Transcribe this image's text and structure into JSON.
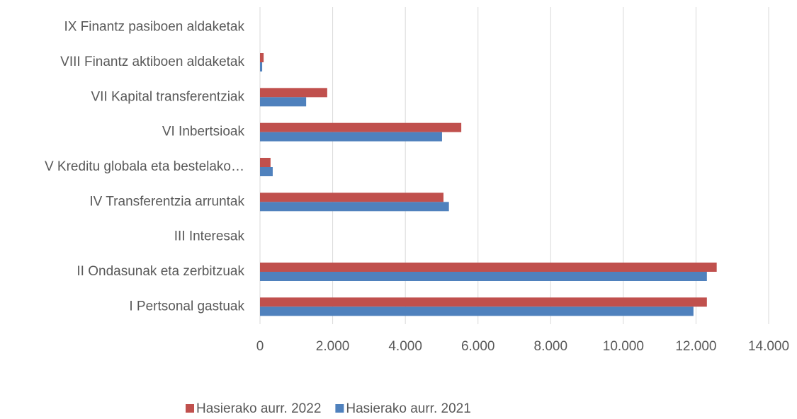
{
  "chart_data": {
    "type": "hbar",
    "categories": [
      "IX Finantz pasiboen aldaketak",
      "VIII Finantz  aktiboen aldaketak",
      "VII Kapital transferentziak",
      "VI Inbertsioak",
      "V Kreditu globala eta bestelako…",
      "IV Transferentzia arruntak",
      "III Interesak",
      "II Ondasunak eta zerbitzuak",
      "I Pertsonal gastuak"
    ],
    "series": [
      {
        "name": "Hasierako aurr. 2022",
        "color": "#c0504d",
        "values": [
          0,
          100,
          1850,
          5540,
          290,
          5050,
          0,
          12570,
          12300
        ]
      },
      {
        "name": "Hasierako aurr. 2021",
        "color": "#4f81bd",
        "values": [
          0,
          60,
          1270,
          5010,
          350,
          5200,
          0,
          12300,
          11930
        ]
      }
    ],
    "xlim": [
      0,
      14000
    ],
    "xticks": [
      0,
      {
        "value": 2000,
        "label": "2.000"
      },
      {
        "value": 4000,
        "label": "4.000"
      },
      {
        "value": 6000,
        "label": "6.000"
      },
      {
        "value": 8000,
        "label": "8.000"
      },
      {
        "value": 10000,
        "label": "10.000"
      },
      {
        "value": 12000,
        "label": "12.000"
      },
      {
        "value": 14000,
        "label": "14.000"
      }
    ],
    "grid": true,
    "legend": "bottom"
  }
}
